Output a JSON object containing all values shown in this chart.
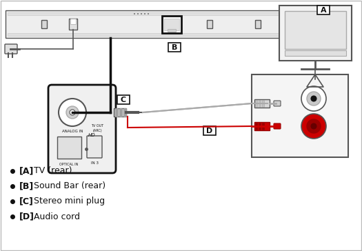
{
  "bg_color": "#ffffff",
  "line_color": "#555555",
  "dark_line": "#111111",
  "gray": "#888888",
  "light_gray": "#cccccc",
  "mid_gray": "#aaaaaa",
  "red_color": "#cc0000",
  "dark_red": "#990000",
  "bullet_items": [
    "[A] TV (rear)",
    "[B] Sound Bar (rear)",
    "[C] Stereo mini plug",
    "[D] Audio cord"
  ],
  "label_A": "A",
  "label_B": "B",
  "label_C": "C",
  "label_D": "D"
}
